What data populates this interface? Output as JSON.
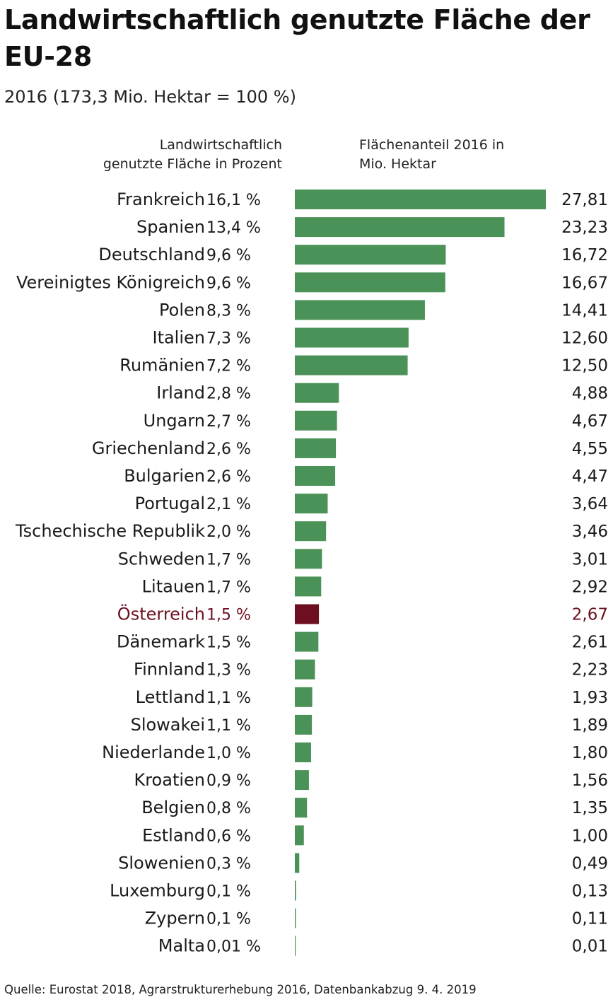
{
  "title": "Landwirtschaftlich genutzte Fläche der EU-28",
  "subtitle": "2016 (173,3 Mio. Hektar = 100 %)",
  "column_headers": {
    "left": [
      "Landwirtschaftlich",
      "genutzte Fläche in Prozent"
    ],
    "right": [
      "Flächenanteil 2016 in",
      "Mio. Hektar"
    ]
  },
  "footer": "Quelle: Eurostat 2018, Agrarstrukturerhebung 2016, Datenbankabzug 9. 4. 2019",
  "colors": {
    "bar": "#4b9258",
    "highlight": "#6d0f1e",
    "text": "#1a1a1a"
  },
  "chart_data": {
    "type": "bar",
    "orientation": "horizontal",
    "highlight_category": "Österreich",
    "categories": [
      "Frankreich",
      "Spanien",
      "Deutschland",
      "Vereinigtes Königreich",
      "Polen",
      "Italien",
      "Rumänien",
      "Irland",
      "Ungarn",
      "Griechenland",
      "Bulgarien",
      "Portugal",
      "Tschechische Republik",
      "Schweden",
      "Litauen",
      "Österreich",
      "Dänemark",
      "Finnland",
      "Lettland",
      "Slowakei",
      "Niederlande",
      "Kroatien",
      "Belgien",
      "Estland",
      "Slowenien",
      "Luxemburg",
      "Zypern",
      "Malta"
    ],
    "percent_labels": [
      "16,1 %",
      "13,4 %",
      "9,6 %",
      "9,6 %",
      "8,3 %",
      "7,3 %",
      "7,2 %",
      "2,8 %",
      "2,7 %",
      "2,6 %",
      "2,6 %",
      "2,1 %",
      "2,0 %",
      "1,7 %",
      "1,7 %",
      "1,5 %",
      "1,5 %",
      "1,3 %",
      "1,1 %",
      "1,1 %",
      "1,0 %",
      "0,9 %",
      "0,8 %",
      "0,6 %",
      "0,3 %",
      "0,1 %",
      "0,1 %",
      "0,01 %"
    ],
    "value_labels": [
      "27,81",
      "23,23",
      "16,72",
      "16,67",
      "14,41",
      "12,60",
      "12,50",
      "4,88",
      "4,67",
      "4,55",
      "4,47",
      "3,64",
      "3,46",
      "3,01",
      "2,92",
      "2,67",
      "2,61",
      "2,23",
      "1,93",
      "1,89",
      "1,80",
      "1,56",
      "1,35",
      "1,00",
      "0,49",
      "0,13",
      "0,11",
      "0,01"
    ],
    "values": [
      27.81,
      23.23,
      16.72,
      16.67,
      14.41,
      12.6,
      12.5,
      4.88,
      4.67,
      4.55,
      4.47,
      3.64,
      3.46,
      3.01,
      2.92,
      2.67,
      2.61,
      2.23,
      1.93,
      1.89,
      1.8,
      1.56,
      1.35,
      1.0,
      0.49,
      0.13,
      0.11,
      0.01
    ],
    "xlim": [
      0,
      27.81
    ],
    "grid": false,
    "legend": "none"
  }
}
